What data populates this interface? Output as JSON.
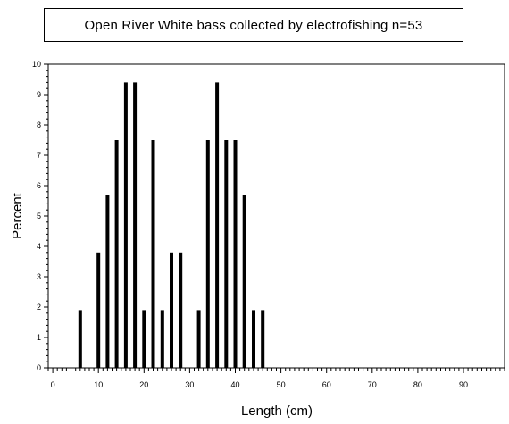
{
  "chart_data": {
    "type": "bar",
    "title": "Open River White bass collected by electrofishing n=53",
    "xlabel": "Length (cm)",
    "ylabel": "Percent",
    "xlim": [
      -1,
      99
    ],
    "ylim": [
      0,
      10
    ],
    "x_ticks": [
      0,
      10,
      20,
      30,
      40,
      50,
      60,
      70,
      80,
      90
    ],
    "y_ticks": [
      0,
      1,
      2,
      3,
      4,
      5,
      6,
      7,
      8,
      9,
      10
    ],
    "x": [
      6,
      10,
      12,
      14,
      16,
      18,
      20,
      22,
      24,
      26,
      28,
      32,
      34,
      36,
      38,
      40,
      42,
      44,
      46
    ],
    "values": [
      1.9,
      3.8,
      5.7,
      7.5,
      9.4,
      9.4,
      1.9,
      7.5,
      1.9,
      3.8,
      3.8,
      1.9,
      7.5,
      9.4,
      7.5,
      7.5,
      5.7,
      1.9,
      1.9
    ],
    "bar_color": "#000000",
    "grid": false,
    "legend": "none"
  }
}
